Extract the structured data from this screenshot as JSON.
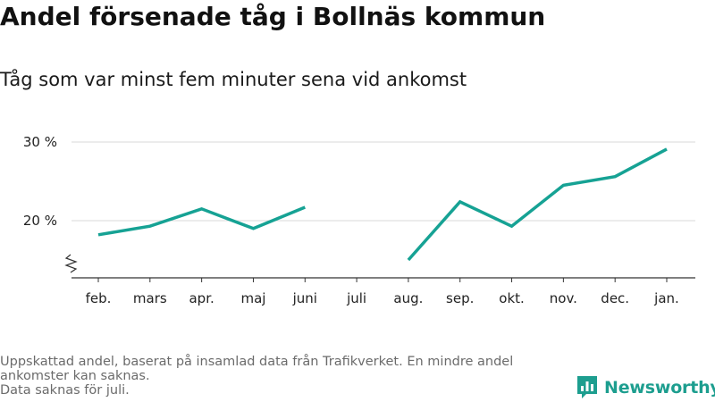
{
  "header": {
    "title": "Andel försenade tåg i Bollnäs kommun",
    "subtitle": "Tåg som var minst fem minuter sena vid ankomst"
  },
  "footnote": {
    "lines": [
      "Uppskattad andel, baserat på insamlad data från Trafikverket. En mindre andel",
      "ankomster kan saknas.",
      "Data saknas för juli."
    ]
  },
  "brand": {
    "name": "Newsworthy",
    "icon": "newsworthy-logo-icon",
    "color": "#1d9e8f"
  },
  "chart_data": {
    "type": "line",
    "title": "Andel försenade tåg i Bollnäs kommun",
    "subtitle": "Tåg som var minst fem minuter sena vid ankomst",
    "categories": [
      "feb.",
      "mars",
      "apr.",
      "maj",
      "juni",
      "juli",
      "aug.",
      "sep.",
      "okt.",
      "nov.",
      "dec.",
      "jan."
    ],
    "series": [
      {
        "values": [
          18.2,
          19.3,
          21.5,
          19.0,
          21.7,
          null,
          15.0,
          22.4,
          19.3,
          24.5,
          25.6,
          29.1
        ]
      }
    ],
    "y_ticks": [
      20,
      30
    ],
    "y_tick_labels": [
      "20 %",
      "30 %"
    ],
    "ylim": [
      13,
      31
    ],
    "y_axis_break": true,
    "grid": true,
    "legend": "none",
    "line_color": "#16a294",
    "xlabel": "",
    "ylabel": ""
  }
}
